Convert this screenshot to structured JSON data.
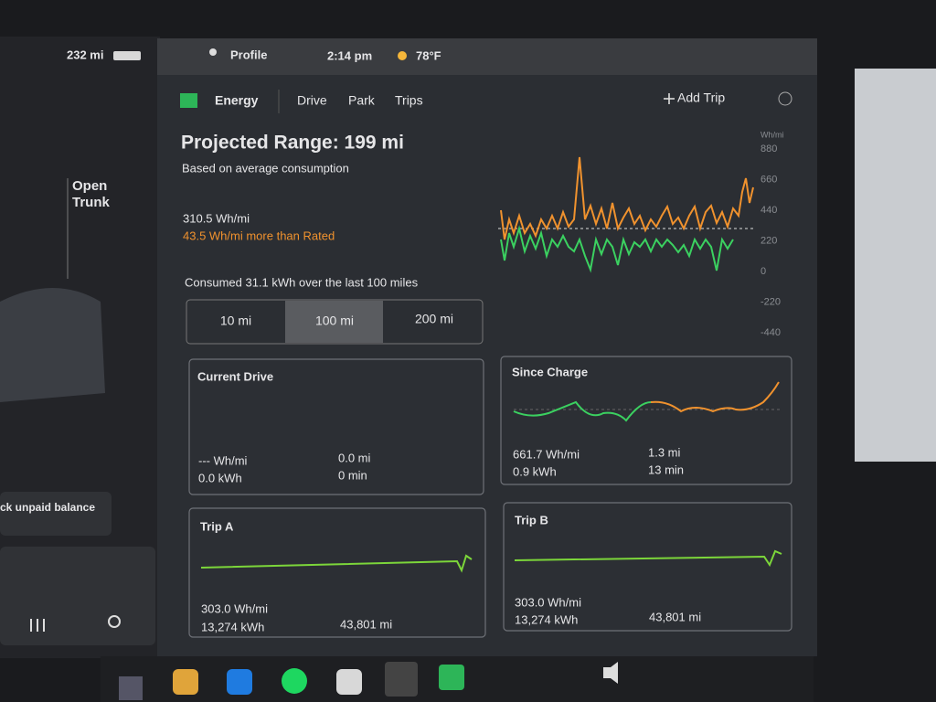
{
  "status": {
    "range": "232 mi",
    "profile": "Profile",
    "time": "2:14 pm",
    "temp": "78°F"
  },
  "left": {
    "open": "Open",
    "trunk": "Trunk",
    "balance": "ck unpaid balance"
  },
  "tabs": [
    "Energy",
    "Drive",
    "Park",
    "Trips"
  ],
  "add_trip": "Add Trip",
  "energy": {
    "title": "Projected Range: 199 mi",
    "subtitle": "Based on average consumption",
    "average": "310.5 Wh/mi",
    "delta": "43.5 Wh/mi more than Rated",
    "consumed": "Consumed 31.1 kWh over the last 100 miles",
    "ranges": [
      "10 mi",
      "100 mi",
      "200 mi"
    ],
    "unit": "Wh/mi",
    "ticks": [
      "880",
      "660",
      "440",
      "220",
      "0",
      "-220",
      "-440"
    ]
  },
  "cards": [
    {
      "title": "Current Drive",
      "rate": "--- Wh/mi",
      "energy": "0.0 kWh",
      "distance": "0.0 mi",
      "time": "0 min"
    },
    {
      "title": "Since Charge",
      "rate": "661.7 Wh/mi",
      "energy": "0.9 kWh",
      "distance": "1.3 mi",
      "time": "13 min"
    },
    {
      "title": "Trip A",
      "rate": "303.0 Wh/mi",
      "energy": "13,274 kWh",
      "odometer": "43,801 mi"
    },
    {
      "title": "Trip B",
      "rate": "303.0 Wh/mi",
      "energy": "13,274 kWh",
      "odometer": "43,801 mi"
    }
  ]
}
